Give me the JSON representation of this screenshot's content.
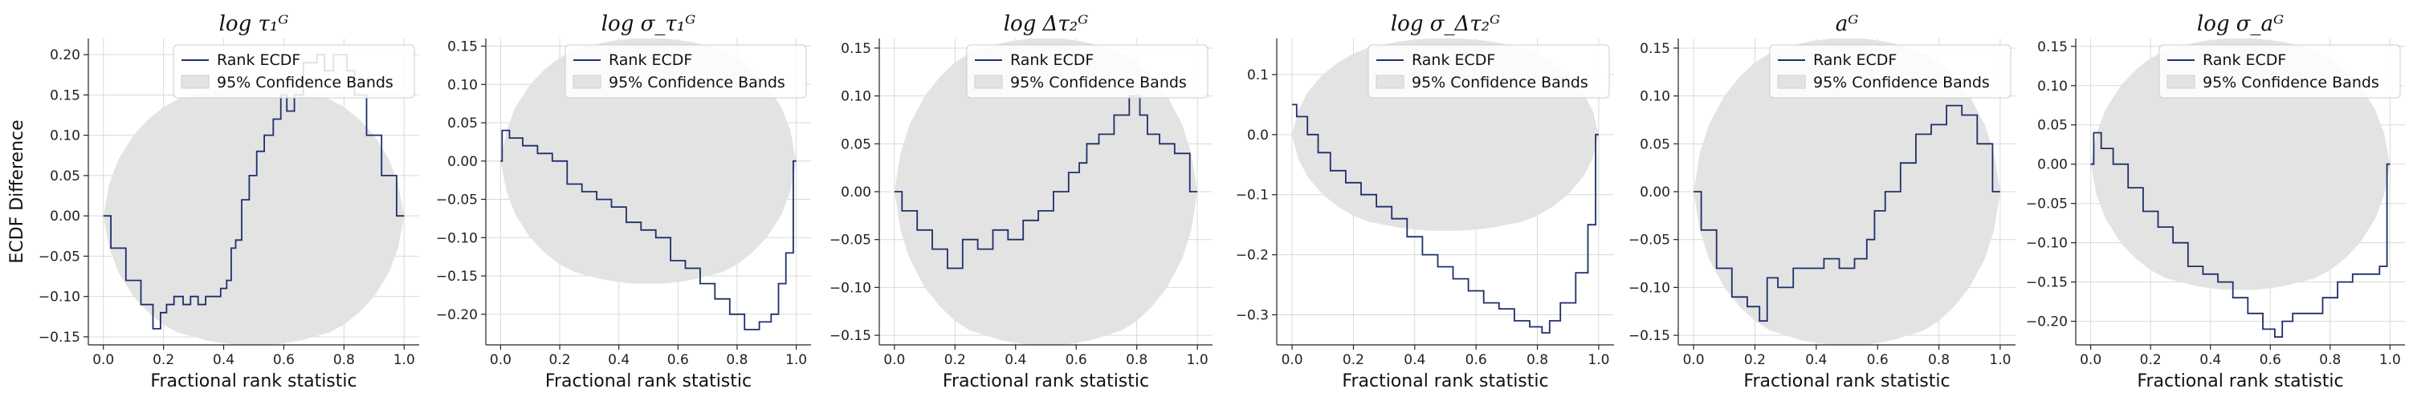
{
  "colors": {
    "line": "#1f2f6b",
    "band": "#e3e3e3",
    "bandEdge": "#cfcfcf"
  },
  "chart_data": [
    {
      "type": "line",
      "title": "log τ₁ᴳ",
      "xlabel": "Fractional rank statistic",
      "ylabel": "ECDF Difference",
      "xlim": [
        -0.05,
        1.05
      ],
      "ylim": [
        -0.16,
        0.22
      ],
      "xticks": [
        0.0,
        0.2,
        0.4,
        0.6,
        0.8,
        1.0
      ],
      "yticks": [
        -0.15,
        -0.1,
        -0.05,
        0.0,
        0.05,
        0.1,
        0.15,
        0.2
      ],
      "ytick_labels": [
        "−0.15",
        "−0.10",
        "−0.05",
        "0.00",
        "0.05",
        "0.10",
        "0.15",
        "0.20"
      ],
      "grid": true,
      "legend": {
        "position": "top-right",
        "entries": [
          "Rank ECDF",
          "95% Confidence Bands"
        ]
      },
      "band": {
        "x": [
          0,
          0.02,
          0.05,
          0.1,
          0.15,
          0.2,
          0.25,
          0.3,
          0.35,
          0.4,
          0.45,
          0.5,
          0.55,
          0.6,
          0.65,
          0.7,
          0.75,
          0.8,
          0.85,
          0.9,
          0.95,
          0.98,
          1.0
        ],
        "upper": [
          0,
          0.04,
          0.07,
          0.1,
          0.12,
          0.135,
          0.145,
          0.15,
          0.155,
          0.158,
          0.16,
          0.16,
          0.16,
          0.158,
          0.155,
          0.15,
          0.145,
          0.135,
          0.12,
          0.1,
          0.07,
          0.04,
          0
        ],
        "lower": [
          0,
          -0.04,
          -0.07,
          -0.1,
          -0.12,
          -0.135,
          -0.145,
          -0.15,
          -0.155,
          -0.158,
          -0.16,
          -0.16,
          -0.16,
          -0.158,
          -0.155,
          -0.15,
          -0.145,
          -0.135,
          -0.12,
          -0.1,
          -0.07,
          -0.04,
          0
        ]
      },
      "series": [
        {
          "name": "Rank ECDF",
          "x": [
            0.0,
            0.05,
            0.1,
            0.15,
            0.18,
            0.2,
            0.22,
            0.25,
            0.28,
            0.3,
            0.33,
            0.35,
            0.38,
            0.4,
            0.42,
            0.43,
            0.45,
            0.47,
            0.5,
            0.52,
            0.55,
            0.58,
            0.6,
            0.62,
            0.65,
            0.68,
            0.7,
            0.72,
            0.75,
            0.78,
            0.8,
            0.82,
            0.85,
            0.9,
            0.95,
            1.0
          ],
          "y": [
            0.0,
            -0.04,
            -0.08,
            -0.11,
            -0.14,
            -0.12,
            -0.11,
            -0.1,
            -0.11,
            -0.1,
            -0.11,
            -0.1,
            -0.1,
            -0.09,
            -0.08,
            -0.04,
            -0.03,
            0.02,
            0.05,
            0.08,
            0.1,
            0.12,
            0.15,
            0.13,
            0.15,
            0.19,
            0.19,
            0.2,
            0.18,
            0.2,
            0.2,
            0.18,
            0.15,
            0.1,
            0.05,
            0.0
          ]
        }
      ]
    },
    {
      "type": "line",
      "title": "log σ_τ₁ᴳ",
      "xlabel": "Fractional rank statistic",
      "ylabel": "",
      "xlim": [
        -0.05,
        1.05
      ],
      "ylim": [
        -0.24,
        0.16
      ],
      "xticks": [
        0.0,
        0.2,
        0.4,
        0.6,
        0.8,
        1.0
      ],
      "yticks": [
        -0.2,
        -0.15,
        -0.1,
        -0.05,
        0.0,
        0.05,
        0.1,
        0.15
      ],
      "ytick_labels": [
        "−0.20",
        "−0.15",
        "−0.10",
        "−0.05",
        "0.00",
        "0.05",
        "0.10",
        "0.15"
      ],
      "grid": true,
      "legend": {
        "position": "top-right",
        "entries": [
          "Rank ECDF",
          "95% Confidence Bands"
        ]
      },
      "band": {
        "x": [
          0,
          0.02,
          0.05,
          0.1,
          0.15,
          0.2,
          0.25,
          0.3,
          0.35,
          0.4,
          0.45,
          0.5,
          0.55,
          0.6,
          0.65,
          0.7,
          0.75,
          0.8,
          0.85,
          0.9,
          0.95,
          0.98,
          1.0
        ],
        "upper": [
          0,
          0.04,
          0.07,
          0.1,
          0.12,
          0.135,
          0.145,
          0.15,
          0.155,
          0.158,
          0.16,
          0.16,
          0.16,
          0.158,
          0.155,
          0.15,
          0.145,
          0.135,
          0.12,
          0.1,
          0.07,
          0.04,
          0
        ],
        "lower": [
          0,
          -0.04,
          -0.07,
          -0.1,
          -0.12,
          -0.135,
          -0.145,
          -0.15,
          -0.155,
          -0.158,
          -0.16,
          -0.16,
          -0.16,
          -0.158,
          -0.155,
          -0.15,
          -0.145,
          -0.135,
          -0.12,
          -0.1,
          -0.07,
          -0.04,
          0
        ]
      },
      "series": [
        {
          "name": "Rank ECDF",
          "x": [
            0.0,
            0.01,
            0.05,
            0.1,
            0.15,
            0.2,
            0.25,
            0.3,
            0.35,
            0.4,
            0.45,
            0.5,
            0.55,
            0.6,
            0.65,
            0.7,
            0.75,
            0.8,
            0.85,
            0.9,
            0.93,
            0.95,
            0.98,
            1.0
          ],
          "y": [
            0.0,
            0.04,
            0.03,
            0.02,
            0.01,
            0.0,
            -0.03,
            -0.04,
            -0.05,
            -0.06,
            -0.08,
            -0.09,
            -0.1,
            -0.13,
            -0.14,
            -0.16,
            -0.18,
            -0.2,
            -0.22,
            -0.21,
            -0.2,
            -0.16,
            -0.12,
            0.0
          ]
        }
      ]
    },
    {
      "type": "line",
      "title": "log Δτ₂ᴳ",
      "xlabel": "Fractional rank statistic",
      "ylabel": "",
      "xlim": [
        -0.05,
        1.05
      ],
      "ylim": [
        -0.16,
        0.16
      ],
      "xticks": [
        0.0,
        0.2,
        0.4,
        0.6,
        0.8,
        1.0
      ],
      "yticks": [
        -0.15,
        -0.1,
        -0.05,
        0.0,
        0.05,
        0.1,
        0.15
      ],
      "ytick_labels": [
        "−0.15",
        "−0.10",
        "−0.05",
        "0.00",
        "0.05",
        "0.10",
        "0.15"
      ],
      "grid": true,
      "legend": {
        "position": "top-right",
        "entries": [
          "Rank ECDF",
          "95% Confidence Bands"
        ]
      },
      "band": {
        "x": [
          0,
          0.02,
          0.05,
          0.1,
          0.15,
          0.2,
          0.25,
          0.3,
          0.35,
          0.4,
          0.45,
          0.5,
          0.55,
          0.6,
          0.65,
          0.7,
          0.75,
          0.8,
          0.85,
          0.9,
          0.95,
          0.98,
          1.0
        ],
        "upper": [
          0,
          0.04,
          0.07,
          0.1,
          0.12,
          0.135,
          0.145,
          0.15,
          0.155,
          0.158,
          0.16,
          0.16,
          0.16,
          0.158,
          0.155,
          0.15,
          0.145,
          0.135,
          0.12,
          0.1,
          0.07,
          0.04,
          0
        ],
        "lower": [
          0,
          -0.04,
          -0.07,
          -0.1,
          -0.12,
          -0.135,
          -0.145,
          -0.15,
          -0.155,
          -0.158,
          -0.16,
          -0.16,
          -0.16,
          -0.158,
          -0.155,
          -0.15,
          -0.145,
          -0.135,
          -0.12,
          -0.1,
          -0.07,
          -0.04,
          0
        ]
      },
      "series": [
        {
          "name": "Rank ECDF",
          "x": [
            0.0,
            0.05,
            0.1,
            0.15,
            0.2,
            0.25,
            0.3,
            0.35,
            0.4,
            0.45,
            0.5,
            0.55,
            0.6,
            0.62,
            0.65,
            0.7,
            0.75,
            0.8,
            0.82,
            0.85,
            0.9,
            0.95,
            1.0
          ],
          "y": [
            0.0,
            -0.02,
            -0.04,
            -0.06,
            -0.08,
            -0.05,
            -0.06,
            -0.04,
            -0.05,
            -0.03,
            -0.02,
            0.0,
            0.02,
            0.03,
            0.05,
            0.06,
            0.08,
            0.1,
            0.08,
            0.06,
            0.05,
            0.04,
            0.0
          ]
        }
      ]
    },
    {
      "type": "line",
      "title": "log σ_Δτ₂ᴳ",
      "xlabel": "Fractional rank statistic",
      "ylabel": "",
      "xlim": [
        -0.05,
        1.05
      ],
      "ylim": [
        -0.35,
        0.16
      ],
      "xticks": [
        0.0,
        0.2,
        0.4,
        0.6,
        0.8,
        1.0
      ],
      "yticks": [
        -0.3,
        -0.2,
        -0.1,
        0.0,
        0.1
      ],
      "ytick_labels": [
        "−0.3",
        "−0.2",
        "−0.1",
        "0.0",
        "0.1"
      ],
      "grid": true,
      "legend": {
        "position": "top-right",
        "entries": [
          "Rank ECDF",
          "95% Confidence Bands"
        ]
      },
      "band": {
        "x": [
          0,
          0.02,
          0.05,
          0.1,
          0.15,
          0.2,
          0.25,
          0.3,
          0.35,
          0.4,
          0.45,
          0.5,
          0.55,
          0.6,
          0.65,
          0.7,
          0.75,
          0.8,
          0.85,
          0.9,
          0.95,
          0.98,
          1.0
        ],
        "upper": [
          0,
          0.04,
          0.07,
          0.1,
          0.12,
          0.135,
          0.145,
          0.15,
          0.155,
          0.158,
          0.16,
          0.16,
          0.16,
          0.158,
          0.155,
          0.15,
          0.145,
          0.135,
          0.12,
          0.1,
          0.07,
          0.04,
          0
        ],
        "lower": [
          0,
          -0.04,
          -0.07,
          -0.1,
          -0.12,
          -0.135,
          -0.145,
          -0.15,
          -0.155,
          -0.158,
          -0.16,
          -0.16,
          -0.16,
          -0.158,
          -0.155,
          -0.15,
          -0.145,
          -0.135,
          -0.12,
          -0.1,
          -0.07,
          -0.04,
          0
        ]
      },
      "series": [
        {
          "name": "Rank ECDF",
          "x": [
            0.0,
            0.03,
            0.07,
            0.1,
            0.15,
            0.2,
            0.25,
            0.3,
            0.35,
            0.4,
            0.45,
            0.5,
            0.55,
            0.6,
            0.65,
            0.7,
            0.75,
            0.8,
            0.83,
            0.85,
            0.9,
            0.95,
            0.98,
            1.0
          ],
          "y": [
            0.05,
            0.03,
            0.0,
            -0.03,
            -0.06,
            -0.08,
            -0.1,
            -0.12,
            -0.14,
            -0.17,
            -0.2,
            -0.22,
            -0.24,
            -0.26,
            -0.28,
            -0.29,
            -0.31,
            -0.32,
            -0.33,
            -0.31,
            -0.28,
            -0.23,
            -0.15,
            0.0
          ]
        }
      ]
    },
    {
      "type": "line",
      "title": "aᴳ",
      "xlabel": "Fractional rank statistic",
      "ylabel": "",
      "xlim": [
        -0.05,
        1.05
      ],
      "ylim": [
        -0.16,
        0.16
      ],
      "xticks": [
        0.0,
        0.2,
        0.4,
        0.6,
        0.8,
        1.0
      ],
      "yticks": [
        -0.15,
        -0.1,
        -0.05,
        0.0,
        0.05,
        0.1,
        0.15
      ],
      "ytick_labels": [
        "−0.15",
        "−0.10",
        "−0.05",
        "0.00",
        "0.05",
        "0.10",
        "0.15"
      ],
      "grid": true,
      "legend": {
        "position": "top-right",
        "entries": [
          "Rank ECDF",
          "95% Confidence Bands"
        ]
      },
      "band": {
        "x": [
          0,
          0.02,
          0.05,
          0.1,
          0.15,
          0.2,
          0.25,
          0.3,
          0.35,
          0.4,
          0.45,
          0.5,
          0.55,
          0.6,
          0.65,
          0.7,
          0.75,
          0.8,
          0.85,
          0.9,
          0.95,
          0.98,
          1.0
        ],
        "upper": [
          0,
          0.04,
          0.07,
          0.1,
          0.12,
          0.135,
          0.145,
          0.15,
          0.155,
          0.158,
          0.16,
          0.16,
          0.16,
          0.158,
          0.155,
          0.15,
          0.145,
          0.135,
          0.12,
          0.1,
          0.07,
          0.04,
          0
        ],
        "lower": [
          0,
          -0.04,
          -0.07,
          -0.1,
          -0.12,
          -0.135,
          -0.145,
          -0.15,
          -0.155,
          -0.158,
          -0.16,
          -0.16,
          -0.16,
          -0.158,
          -0.155,
          -0.15,
          -0.145,
          -0.135,
          -0.12,
          -0.1,
          -0.07,
          -0.04,
          0
        ]
      },
      "series": [
        {
          "name": "Rank ECDF",
          "x": [
            0.0,
            0.05,
            0.1,
            0.15,
            0.2,
            0.23,
            0.25,
            0.3,
            0.35,
            0.4,
            0.45,
            0.5,
            0.55,
            0.58,
            0.6,
            0.65,
            0.7,
            0.75,
            0.8,
            0.85,
            0.9,
            0.95,
            1.0
          ],
          "y": [
            0.0,
            -0.04,
            -0.08,
            -0.11,
            -0.12,
            -0.135,
            -0.09,
            -0.1,
            -0.08,
            -0.08,
            -0.07,
            -0.08,
            -0.07,
            -0.05,
            -0.02,
            0.0,
            0.03,
            0.06,
            0.07,
            0.09,
            0.08,
            0.05,
            0.0
          ]
        }
      ]
    },
    {
      "type": "line",
      "title": "log σ_aᴳ",
      "xlabel": "Fractional rank statistic",
      "ylabel": "",
      "xlim": [
        -0.05,
        1.05
      ],
      "ylim": [
        -0.23,
        0.16
      ],
      "xticks": [
        0.0,
        0.2,
        0.4,
        0.6,
        0.8,
        1.0
      ],
      "yticks": [
        -0.2,
        -0.15,
        -0.1,
        -0.05,
        0.0,
        0.05,
        0.1,
        0.15
      ],
      "ytick_labels": [
        "−0.20",
        "−0.15",
        "−0.10",
        "−0.05",
        "0.00",
        "0.05",
        "0.10",
        "0.15"
      ],
      "grid": true,
      "legend": {
        "position": "top-right",
        "entries": [
          "Rank ECDF",
          "95% Confidence Bands"
        ]
      },
      "band": {
        "x": [
          0,
          0.02,
          0.05,
          0.1,
          0.15,
          0.2,
          0.25,
          0.3,
          0.35,
          0.4,
          0.45,
          0.5,
          0.55,
          0.6,
          0.65,
          0.7,
          0.75,
          0.8,
          0.85,
          0.9,
          0.95,
          0.98,
          1.0
        ],
        "upper": [
          0,
          0.04,
          0.07,
          0.1,
          0.12,
          0.135,
          0.145,
          0.15,
          0.155,
          0.158,
          0.16,
          0.16,
          0.16,
          0.158,
          0.155,
          0.15,
          0.145,
          0.135,
          0.12,
          0.1,
          0.07,
          0.04,
          0
        ],
        "lower": [
          0,
          -0.04,
          -0.07,
          -0.1,
          -0.12,
          -0.135,
          -0.145,
          -0.15,
          -0.155,
          -0.158,
          -0.16,
          -0.16,
          -0.16,
          -0.158,
          -0.155,
          -0.15,
          -0.145,
          -0.135,
          -0.12,
          -0.1,
          -0.07,
          -0.04,
          0
        ]
      },
      "series": [
        {
          "name": "Rank ECDF",
          "x": [
            0.0,
            0.02,
            0.05,
            0.1,
            0.15,
            0.2,
            0.25,
            0.3,
            0.35,
            0.4,
            0.45,
            0.5,
            0.55,
            0.6,
            0.63,
            0.65,
            0.7,
            0.75,
            0.8,
            0.85,
            0.9,
            0.95,
            0.98,
            1.0
          ],
          "y": [
            0.0,
            0.04,
            0.02,
            0.0,
            -0.03,
            -0.06,
            -0.08,
            -0.1,
            -0.13,
            -0.14,
            -0.15,
            -0.17,
            -0.19,
            -0.21,
            -0.22,
            -0.2,
            -0.19,
            -0.19,
            -0.17,
            -0.15,
            -0.14,
            -0.14,
            -0.13,
            0.0
          ]
        }
      ]
    }
  ]
}
